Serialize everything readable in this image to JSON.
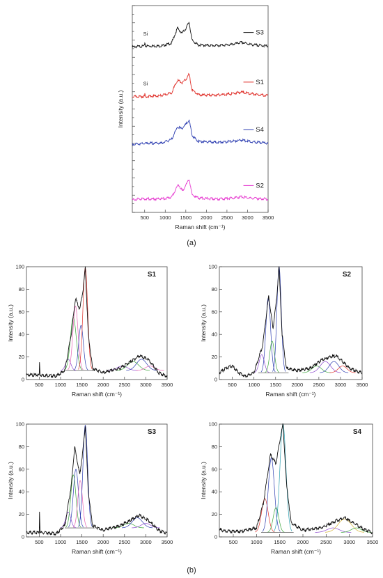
{
  "panel_a": {
    "label": "(a)",
    "chart_data": {
      "type": "line",
      "xlabel": "Raman shift (cm⁻¹)",
      "ylabel": "Intensity (a.u.)",
      "xlim": [
        200,
        3500
      ],
      "xticks": [
        500,
        1000,
        1500,
        2000,
        2500,
        3000,
        3500
      ],
      "stacked_offset": true,
      "series": [
        {
          "name": "S3",
          "color": "#111111",
          "baseline": 0.8,
          "annotation": "Si",
          "points": [
            [
              200,
              0.0
            ],
            [
              500,
              0.02
            ],
            [
              505,
              0.12
            ],
            [
              520,
              0.02
            ],
            [
              900,
              0.02
            ],
            [
              1150,
              0.08
            ],
            [
              1300,
              0.42
            ],
            [
              1400,
              0.3
            ],
            [
              1500,
              0.4
            ],
            [
              1580,
              0.55
            ],
            [
              1650,
              0.15
            ],
            [
              1800,
              0.04
            ],
            [
              2200,
              0.03
            ],
            [
              2600,
              0.05
            ],
            [
              2850,
              0.1
            ],
            [
              3100,
              0.05
            ],
            [
              3500,
              0.02
            ]
          ]
        },
        {
          "name": "S1",
          "color": "#e0322c",
          "baseline": 0.56,
          "annotation": "Si",
          "points": [
            [
              200,
              0.0
            ],
            [
              500,
              0.0
            ],
            [
              505,
              0.08
            ],
            [
              520,
              0.0
            ],
            [
              900,
              0.02
            ],
            [
              1150,
              0.08
            ],
            [
              1300,
              0.36
            ],
            [
              1420,
              0.3
            ],
            [
              1520,
              0.4
            ],
            [
              1580,
              0.5
            ],
            [
              1650,
              0.15
            ],
            [
              1800,
              0.04
            ],
            [
              2200,
              0.03
            ],
            [
              2600,
              0.06
            ],
            [
              2850,
              0.1
            ],
            [
              3100,
              0.06
            ],
            [
              3500,
              0.02
            ]
          ]
        },
        {
          "name": "S4",
          "color": "#2b3cb0",
          "baseline": 0.33,
          "points": [
            [
              200,
              0.0
            ],
            [
              600,
              0.02
            ],
            [
              900,
              0.02
            ],
            [
              1150,
              0.1
            ],
            [
              1300,
              0.38
            ],
            [
              1400,
              0.34
            ],
            [
              1500,
              0.44
            ],
            [
              1580,
              0.52
            ],
            [
              1660,
              0.18
            ],
            [
              1800,
              0.06
            ],
            [
              2300,
              0.04
            ],
            [
              2600,
              0.06
            ],
            [
              2850,
              0.09
            ],
            [
              3100,
              0.05
            ],
            [
              3500,
              0.02
            ]
          ]
        },
        {
          "name": "S2",
          "color": "#e63ad0",
          "baseline": 0.06,
          "points": [
            [
              200,
              0.0
            ],
            [
              400,
              0.03
            ],
            [
              700,
              0.02
            ],
            [
              1000,
              0.03
            ],
            [
              1150,
              0.06
            ],
            [
              1320,
              0.34
            ],
            [
              1420,
              0.2
            ],
            [
              1520,
              0.36
            ],
            [
              1580,
              0.46
            ],
            [
              1650,
              0.12
            ],
            [
              1800,
              0.04
            ],
            [
              2300,
              0.02
            ],
            [
              2600,
              0.04
            ],
            [
              2850,
              0.07
            ],
            [
              3100,
              0.04
            ],
            [
              3500,
              0.02
            ]
          ]
        }
      ]
    }
  },
  "panel_b": {
    "label": "(b)",
    "charts": [
      {
        "title": "S1",
        "xlabel": "Raman shift (cm⁻¹)",
        "ylabel": "Intensity (a.u.)",
        "xlim": [
          200,
          3500
        ],
        "ylim": [
          0,
          100
        ],
        "xticks": [
          500,
          1000,
          1500,
          2000,
          2500,
          3000,
          3500
        ],
        "yticks": [
          0,
          20,
          40,
          60,
          80,
          100
        ],
        "baseline": 8,
        "spike": 500,
        "envelope": [
          [
            200,
            4
          ],
          [
            500,
            4
          ],
          [
            505,
            16
          ],
          [
            520,
            4
          ],
          [
            900,
            3
          ],
          [
            1100,
            8
          ],
          [
            1250,
            40
          ],
          [
            1350,
            72
          ],
          [
            1450,
            62
          ],
          [
            1530,
            80
          ],
          [
            1580,
            99
          ],
          [
            1650,
            40
          ],
          [
            1750,
            10
          ],
          [
            2000,
            6
          ],
          [
            2400,
            10
          ],
          [
            2650,
            16
          ],
          [
            2850,
            21
          ],
          [
            3050,
            18
          ],
          [
            3300,
            6
          ],
          [
            3500,
            3
          ]
        ],
        "fit_peaks": [
          {
            "center": 1180,
            "height": 18,
            "width": 60,
            "color": "#8844cc"
          },
          {
            "center": 1300,
            "height": 55,
            "width": 70,
            "color": "#3aa53a"
          },
          {
            "center": 1350,
            "height": 65,
            "width": 60,
            "color": "#e65fb0"
          },
          {
            "center": 1480,
            "height": 48,
            "width": 55,
            "color": "#2b3cb0"
          },
          {
            "center": 1580,
            "height": 99,
            "width": 55,
            "color": "#e0322c"
          },
          {
            "center": 2450,
            "height": 12,
            "width": 120,
            "color": "#8844cc"
          },
          {
            "center": 2700,
            "height": 16,
            "width": 130,
            "color": "#3aa53a"
          },
          {
            "center": 2900,
            "height": 18,
            "width": 120,
            "color": "#2b3cb0"
          },
          {
            "center": 3100,
            "height": 12,
            "width": 110,
            "color": "#e65fb0"
          }
        ]
      },
      {
        "title": "S2",
        "xlabel": "Raman shift (cm⁻¹)",
        "ylabel": "Intensity (a.u.)",
        "xlim": [
          200,
          3500
        ],
        "ylim": [
          0,
          100
        ],
        "xticks": [
          500,
          1000,
          1500,
          2000,
          2500,
          3000,
          3500
        ],
        "yticks": [
          0,
          20,
          40,
          60,
          80,
          100
        ],
        "baseline": 6,
        "envelope": [
          [
            200,
            6
          ],
          [
            350,
            10
          ],
          [
            500,
            12
          ],
          [
            650,
            6
          ],
          [
            800,
            3
          ],
          [
            1000,
            6
          ],
          [
            1200,
            30
          ],
          [
            1340,
            74
          ],
          [
            1440,
            45
          ],
          [
            1520,
            70
          ],
          [
            1580,
            100
          ],
          [
            1650,
            40
          ],
          [
            1750,
            10
          ],
          [
            2000,
            8
          ],
          [
            2300,
            10
          ],
          [
            2550,
            17
          ],
          [
            2750,
            20
          ],
          [
            2900,
            21
          ],
          [
            3050,
            16
          ],
          [
            3200,
            10
          ],
          [
            3400,
            7
          ],
          [
            3500,
            6
          ]
        ],
        "fit_peaks": [
          {
            "center": 1180,
            "height": 22,
            "width": 60,
            "color": "#8844cc"
          },
          {
            "center": 1330,
            "height": 72,
            "width": 55,
            "color": "#2b3cb0"
          },
          {
            "center": 1420,
            "height": 34,
            "width": 55,
            "color": "#3aa53a"
          },
          {
            "center": 1580,
            "height": 100,
            "width": 50,
            "color": "#2b3cb0"
          },
          {
            "center": 2450,
            "height": 12,
            "width": 110,
            "color": "#3aa53a"
          },
          {
            "center": 2650,
            "height": 16,
            "width": 120,
            "color": "#8844cc"
          },
          {
            "center": 2850,
            "height": 16,
            "width": 110,
            "color": "#2b3cb0"
          },
          {
            "center": 3050,
            "height": 12,
            "width": 100,
            "color": "#e0322c"
          }
        ]
      },
      {
        "title": "S3",
        "xlabel": "Raman shift (cm⁻¹)",
        "ylabel": "Intensity (a.u.)",
        "xlim": [
          200,
          3500
        ],
        "ylim": [
          0,
          100
        ],
        "xticks": [
          500,
          1000,
          1500,
          2000,
          2500,
          3000,
          3500
        ],
        "yticks": [
          0,
          20,
          40,
          60,
          80,
          100
        ],
        "baseline": 8,
        "spike": 500,
        "envelope": [
          [
            200,
            4
          ],
          [
            500,
            4
          ],
          [
            505,
            25
          ],
          [
            520,
            4
          ],
          [
            900,
            3
          ],
          [
            1100,
            10
          ],
          [
            1250,
            45
          ],
          [
            1330,
            80
          ],
          [
            1450,
            55
          ],
          [
            1520,
            75
          ],
          [
            1580,
            99
          ],
          [
            1650,
            40
          ],
          [
            1750,
            10
          ],
          [
            2000,
            6
          ],
          [
            2400,
            10
          ],
          [
            2650,
            15
          ],
          [
            2850,
            19
          ],
          [
            3050,
            15
          ],
          [
            3300,
            6
          ],
          [
            3500,
            3
          ]
        ],
        "fit_peaks": [
          {
            "center": 1180,
            "height": 22,
            "width": 60,
            "color": "#8844cc"
          },
          {
            "center": 1300,
            "height": 55,
            "width": 60,
            "color": "#3aa53a"
          },
          {
            "center": 1360,
            "height": 60,
            "width": 60,
            "color": "#2b3cb0"
          },
          {
            "center": 1460,
            "height": 50,
            "width": 55,
            "color": "#e65fb0"
          },
          {
            "center": 1580,
            "height": 99,
            "width": 55,
            "color": "#2b3cb0"
          },
          {
            "center": 2600,
            "height": 12,
            "width": 120,
            "color": "#3aa53a"
          },
          {
            "center": 2800,
            "height": 17,
            "width": 120,
            "color": "#2b3cb0"
          },
          {
            "center": 3000,
            "height": 12,
            "width": 110,
            "color": "#8844cc"
          }
        ]
      },
      {
        "title": "S4",
        "xlabel": "Raman shift (cm⁻¹)",
        "ylabel": "Intensity (a.u.)",
        "xlim": [
          200,
          3500
        ],
        "ylim": [
          0,
          100
        ],
        "xticks": [
          500,
          1000,
          1500,
          2000,
          2500,
          3000,
          3500
        ],
        "yticks": [
          0,
          20,
          40,
          60,
          80,
          100
        ],
        "baseline": 4,
        "envelope": [
          [
            200,
            6
          ],
          [
            400,
            5
          ],
          [
            700,
            5
          ],
          [
            1000,
            8
          ],
          [
            1150,
            30
          ],
          [
            1300,
            73
          ],
          [
            1420,
            65
          ],
          [
            1500,
            85
          ],
          [
            1570,
            100
          ],
          [
            1650,
            45
          ],
          [
            1750,
            12
          ],
          [
            2000,
            6
          ],
          [
            2400,
            8
          ],
          [
            2700,
            14
          ],
          [
            2900,
            17
          ],
          [
            3100,
            12
          ],
          [
            3350,
            6
          ],
          [
            3500,
            4
          ]
        ],
        "fit_peaks": [
          {
            "center": 1180,
            "height": 34,
            "width": 70,
            "color": "#e0322c"
          },
          {
            "center": 1320,
            "height": 70,
            "width": 65,
            "color": "#2b3cb0"
          },
          {
            "center": 1420,
            "height": 26,
            "width": 60,
            "color": "#3aa53a"
          },
          {
            "center": 1570,
            "height": 100,
            "width": 65,
            "color": "#2b9fb0"
          },
          {
            "center": 2650,
            "height": 8,
            "width": 130,
            "color": "#8844cc"
          },
          {
            "center": 2900,
            "height": 16,
            "width": 140,
            "color": "#d4b230"
          },
          {
            "center": 3150,
            "height": 8,
            "width": 110,
            "color": "#3aa53a"
          }
        ]
      }
    ]
  }
}
